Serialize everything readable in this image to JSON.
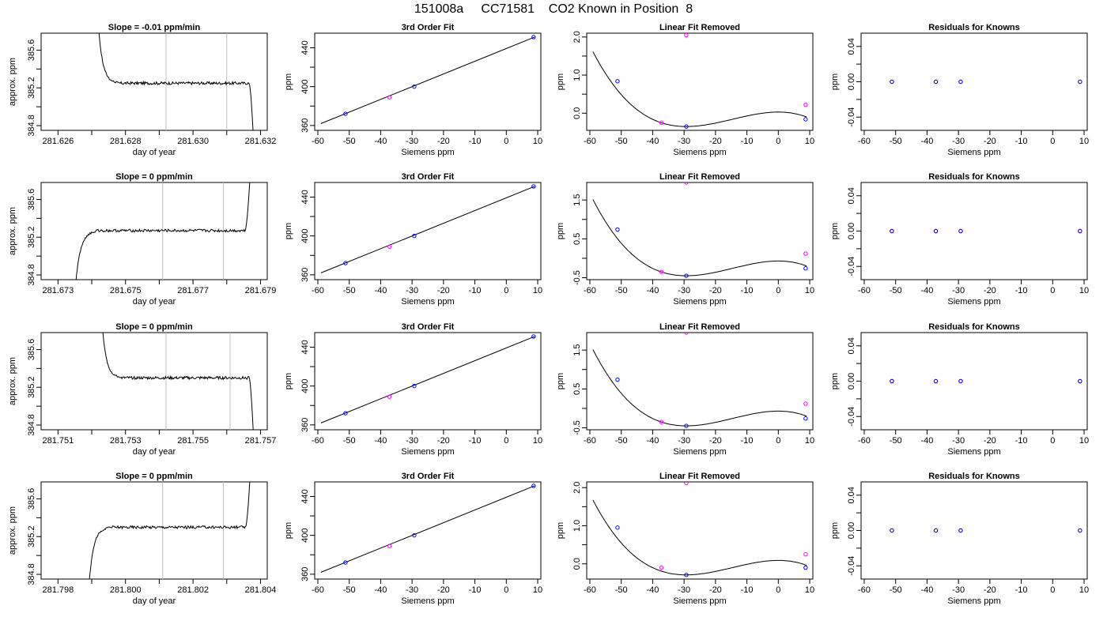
{
  "page_title": "151008a     CC71581    CO2 Known in Position  8",
  "colors": {
    "line": "#000000",
    "point_blue": "#0000ff",
    "point_magenta": "#ff00ff",
    "marker_gray": "#bebebe",
    "axis": "#000000"
  },
  "chart_data": [
    {
      "row": 1,
      "col": 1,
      "type": "line",
      "title": "Slope =  -0.01  ppm/min",
      "xlabel": "day of year",
      "ylabel": "approx. ppm",
      "xlim": [
        281.6255,
        281.6322
      ],
      "ylim": [
        384.75,
        385.78
      ],
      "xticks": [
        281.626,
        281.627,
        281.628,
        281.629,
        281.63,
        281.631,
        281.632
      ],
      "xtick_labels": [
        "281.626",
        "",
        "281.628",
        "",
        "281.630",
        "",
        "281.632"
      ],
      "yticks": [
        384.8,
        385.0,
        385.2,
        385.4,
        385.6
      ],
      "ytick_labels": [
        "384.8",
        "",
        "385.2",
        "",
        "385.6"
      ],
      "vlines": [
        281.6292,
        281.631
      ],
      "series": [
        {
          "shape": "settle_drop",
          "x_start": 281.6272,
          "x_end": 281.6318,
          "plateau": 385.25,
          "start": 385.85,
          "end": 384.6
        }
      ]
    },
    {
      "row": 1,
      "col": 2,
      "type": "scatter",
      "title": "3rd Order Fit",
      "xlabel": "Siemens ppm",
      "ylabel": "ppm",
      "xlim": [
        -61,
        11
      ],
      "ylim": [
        355,
        455
      ],
      "xticks": [
        -60,
        -50,
        -40,
        -30,
        -20,
        -10,
        0,
        10
      ],
      "xtick_labels": [
        "-60",
        "-50",
        "-40",
        "-30",
        "-20",
        "-10",
        "0",
        "10"
      ],
      "yticks": [
        360,
        380,
        400,
        420,
        440
      ],
      "ytick_labels": [
        "360",
        "",
        "400",
        "",
        "440"
      ],
      "fit_line": [
        [
          -59,
          362
        ],
        [
          9,
          451
        ]
      ],
      "points_blue": [
        [
          -51.2,
          372
        ],
        [
          -29.3,
          400
        ],
        [
          8.7,
          451
        ]
      ],
      "points_magenta": [
        [
          -37.2,
          389
        ]
      ]
    },
    {
      "row": 1,
      "col": 3,
      "type": "scatter",
      "title": "Linear Fit Removed",
      "xlabel": "Siemens ppm",
      "ylabel": "ppm",
      "xlim": [
        -61,
        11
      ],
      "ylim": [
        -0.45,
        2.1
      ],
      "xticks": [
        -60,
        -50,
        -40,
        -30,
        -20,
        -10,
        0,
        10
      ],
      "xtick_labels": [
        "-60",
        "-50",
        "-40",
        "-30",
        "-20",
        "-10",
        "0",
        "10"
      ],
      "yticks": [
        0.0,
        0.5,
        1.0,
        1.5,
        2.0
      ],
      "ytick_labels": [
        "0.0",
        "",
        "1.0",
        "",
        "2.0"
      ],
      "curve": {
        "x0": -59,
        "x1": 9,
        "a": 1.54,
        "xmin": -29.3,
        "ymin": -0.35
      },
      "points_blue": [
        [
          -51.2,
          0.84
        ],
        [
          -29.3,
          -0.35
        ],
        [
          8.7,
          -0.16
        ]
      ],
      "points_magenta": [
        [
          -37.2,
          -0.25
        ],
        [
          -29.3,
          2.05
        ],
        [
          8.7,
          0.22
        ]
      ]
    },
    {
      "row": 1,
      "col": 4,
      "type": "scatter",
      "title": "Residuals for Knowns",
      "xlabel": "Siemens ppm",
      "ylabel": "ppm",
      "xlim": [
        -61,
        11
      ],
      "ylim": [
        -0.055,
        0.055
      ],
      "xticks": [
        -60,
        -50,
        -40,
        -30,
        -20,
        -10,
        0,
        10
      ],
      "xtick_labels": [
        "-60",
        "-50",
        "-40",
        "-30",
        "-20",
        "-10",
        "0",
        "10"
      ],
      "yticks": [
        -0.04,
        -0.02,
        0.0,
        0.02,
        0.04
      ],
      "ytick_labels": [
        "-0.04",
        "",
        "0.00",
        "",
        "0.04"
      ],
      "points_blue": [
        [
          -51.2,
          0
        ],
        [
          -37.2,
          0
        ],
        [
          -29.3,
          0
        ],
        [
          8.7,
          0
        ]
      ],
      "points_magenta": [
        [
          -51.2,
          0
        ],
        [
          -37.2,
          0
        ],
        [
          -29.3,
          0
        ],
        [
          8.7,
          0
        ]
      ]
    },
    {
      "row": 2,
      "col": 1,
      "type": "line",
      "title": "Slope =  0  ppm/min",
      "xlabel": "day of year",
      "ylabel": "approx. ppm",
      "xlim": [
        281.6725,
        281.6792
      ],
      "ylim": [
        384.75,
        385.78
      ],
      "xticks": [
        281.673,
        281.674,
        281.675,
        281.676,
        281.677,
        281.678,
        281.679
      ],
      "xtick_labels": [
        "281.673",
        "",
        "281.675",
        "",
        "281.677",
        "",
        "281.679"
      ],
      "yticks": [
        384.8,
        385.0,
        385.2,
        385.4,
        385.6
      ],
      "ytick_labels": [
        "384.8",
        "",
        "385.2",
        "",
        "385.6"
      ],
      "vlines": [
        281.6761,
        281.6779
      ],
      "series": [
        {
          "shape": "rise_rise",
          "x_start": 281.6735,
          "x_end": 281.6787,
          "plateau": 385.27,
          "start": 384.6,
          "end": 385.9
        }
      ]
    },
    {
      "row": 2,
      "col": 2,
      "type": "scatter",
      "title": "3rd Order Fit",
      "xlabel": "Siemens ppm",
      "ylabel": "ppm",
      "xlim": [
        -61,
        11
      ],
      "ylim": [
        355,
        455
      ],
      "xticks": [
        -60,
        -50,
        -40,
        -30,
        -20,
        -10,
        0,
        10
      ],
      "xtick_labels": [
        "-60",
        "-50",
        "-40",
        "-30",
        "-20",
        "-10",
        "0",
        "10"
      ],
      "yticks": [
        360,
        380,
        400,
        420,
        440
      ],
      "ytick_labels": [
        "360",
        "",
        "400",
        "",
        "440"
      ],
      "fit_line": [
        [
          -59,
          362
        ],
        [
          9,
          451
        ]
      ],
      "points_blue": [
        [
          -51.2,
          372
        ],
        [
          -29.3,
          400
        ],
        [
          8.7,
          451
        ]
      ],
      "points_magenta": [
        [
          -37.2,
          389
        ]
      ]
    },
    {
      "row": 2,
      "col": 3,
      "type": "scatter",
      "title": "Linear Fit Removed",
      "xlabel": "Siemens ppm",
      "ylabel": "ppm",
      "xlim": [
        -61,
        11
      ],
      "ylim": [
        -0.55,
        1.95
      ],
      "xticks": [
        -60,
        -50,
        -40,
        -30,
        -20,
        -10,
        0,
        10
      ],
      "xtick_labels": [
        "-60",
        "-50",
        "-40",
        "-30",
        "-20",
        "-10",
        "0",
        "10"
      ],
      "yticks": [
        -0.5,
        0.0,
        0.5,
        1.0,
        1.5
      ],
      "ytick_labels": [
        "-0.5",
        "",
        "0.5",
        "",
        "1.5"
      ],
      "curve": {
        "x0": -59,
        "x1": 9,
        "a": 1.54,
        "xmin": -29.3,
        "ymin": -0.45
      },
      "points_blue": [
        [
          -51.2,
          0.74
        ],
        [
          -29.3,
          -0.45
        ],
        [
          8.7,
          -0.26
        ]
      ],
      "points_magenta": [
        [
          -37.2,
          -0.35
        ],
        [
          -29.3,
          1.95
        ],
        [
          8.7,
          0.12
        ]
      ]
    },
    {
      "row": 2,
      "col": 4,
      "type": "scatter",
      "title": "Residuals for Knowns",
      "xlabel": "Siemens ppm",
      "ylabel": "ppm",
      "xlim": [
        -61,
        11
      ],
      "ylim": [
        -0.055,
        0.055
      ],
      "xticks": [
        -60,
        -50,
        -40,
        -30,
        -20,
        -10,
        0,
        10
      ],
      "xtick_labels": [
        "-60",
        "-50",
        "-40",
        "-30",
        "-20",
        "-10",
        "0",
        "10"
      ],
      "yticks": [
        -0.04,
        -0.02,
        0.0,
        0.02,
        0.04
      ],
      "ytick_labels": [
        "-0.04",
        "",
        "0.00",
        "",
        "0.04"
      ],
      "points_blue": [
        [
          -51.2,
          0
        ],
        [
          -37.2,
          0
        ],
        [
          -29.3,
          0
        ],
        [
          8.7,
          0
        ]
      ],
      "points_magenta": [
        [
          -51.2,
          0
        ],
        [
          -37.2,
          0
        ],
        [
          -29.3,
          0
        ],
        [
          8.7,
          0
        ]
      ]
    },
    {
      "row": 3,
      "col": 1,
      "type": "line",
      "title": "Slope =  0  ppm/min",
      "xlabel": "day of year",
      "ylabel": "approx. ppm",
      "xlim": [
        281.7505,
        281.7572
      ],
      "ylim": [
        384.75,
        385.78
      ],
      "xticks": [
        281.751,
        281.752,
        281.753,
        281.754,
        281.755,
        281.756,
        281.757
      ],
      "xtick_labels": [
        "281.751",
        "",
        "281.753",
        "",
        "281.755",
        "",
        "281.757"
      ],
      "yticks": [
        384.8,
        385.0,
        385.2,
        385.4,
        385.6
      ],
      "ytick_labels": [
        "384.8",
        "",
        "385.2",
        "",
        "385.6"
      ],
      "vlines": [
        281.7542,
        281.7561
      ],
      "series": [
        {
          "shape": "settle_drop",
          "x_start": 281.7523,
          "x_end": 281.7568,
          "plateau": 385.3,
          "start": 385.9,
          "end": 384.6
        }
      ]
    },
    {
      "row": 3,
      "col": 2,
      "type": "scatter",
      "title": "3rd Order Fit",
      "xlabel": "Siemens ppm",
      "ylabel": "ppm",
      "xlim": [
        -61,
        11
      ],
      "ylim": [
        355,
        455
      ],
      "xticks": [
        -60,
        -50,
        -40,
        -30,
        -20,
        -10,
        0,
        10
      ],
      "xtick_labels": [
        "-60",
        "-50",
        "-40",
        "-30",
        "-20",
        "-10",
        "0",
        "10"
      ],
      "yticks": [
        360,
        380,
        400,
        420,
        440
      ],
      "ytick_labels": [
        "360",
        "",
        "400",
        "",
        "440"
      ],
      "fit_line": [
        [
          -59,
          362
        ],
        [
          9,
          451
        ]
      ],
      "points_blue": [
        [
          -51.2,
          372
        ],
        [
          -29.3,
          400
        ],
        [
          8.7,
          451
        ]
      ],
      "points_magenta": [
        [
          -37.2,
          389
        ]
      ]
    },
    {
      "row": 3,
      "col": 3,
      "type": "scatter",
      "title": "Linear Fit Removed",
      "xlabel": "Siemens ppm",
      "ylabel": "ppm",
      "xlim": [
        -61,
        11
      ],
      "ylim": [
        -0.55,
        1.95
      ],
      "xticks": [
        -60,
        -50,
        -40,
        -30,
        -20,
        -10,
        0,
        10
      ],
      "xtick_labels": [
        "-60",
        "-50",
        "-40",
        "-30",
        "-20",
        "-10",
        "0",
        "10"
      ],
      "yticks": [
        -0.5,
        0.0,
        0.5,
        1.0,
        1.5
      ],
      "ytick_labels": [
        "-0.5",
        "",
        "0.5",
        "",
        "1.5"
      ],
      "curve": {
        "x0": -59,
        "x1": 9,
        "a": 1.54,
        "xmin": -29.3,
        "ymin": -0.45
      },
      "points_blue": [
        [
          -51.2,
          0.74
        ],
        [
          -29.3,
          -0.45
        ],
        [
          8.7,
          -0.26
        ]
      ],
      "points_magenta": [
        [
          -37.2,
          -0.35
        ],
        [
          -29.3,
          1.95
        ],
        [
          8.7,
          0.12
        ]
      ]
    },
    {
      "row": 3,
      "col": 4,
      "type": "scatter",
      "title": "Residuals for Knowns",
      "xlabel": "Siemens ppm",
      "ylabel": "ppm",
      "xlim": [
        -61,
        11
      ],
      "ylim": [
        -0.055,
        0.055
      ],
      "xticks": [
        -60,
        -50,
        -40,
        -30,
        -20,
        -10,
        0,
        10
      ],
      "xtick_labels": [
        "-60",
        "-50",
        "-40",
        "-30",
        "-20",
        "-10",
        "0",
        "10"
      ],
      "yticks": [
        -0.04,
        -0.02,
        0.0,
        0.02,
        0.04
      ],
      "ytick_labels": [
        "-0.04",
        "",
        "0.00",
        "",
        "0.04"
      ],
      "points_blue": [
        [
          -51.2,
          0
        ],
        [
          -37.2,
          0
        ],
        [
          -29.3,
          0
        ],
        [
          8.7,
          0
        ]
      ],
      "points_magenta": [
        [
          -51.2,
          0
        ],
        [
          -37.2,
          0
        ],
        [
          -29.3,
          0
        ],
        [
          8.7,
          0
        ]
      ]
    },
    {
      "row": 4,
      "col": 1,
      "type": "line",
      "title": "Slope =  0  ppm/min",
      "xlabel": "day of year",
      "ylabel": "approx. ppm",
      "xlim": [
        281.7975,
        281.8042
      ],
      "ylim": [
        384.75,
        385.78
      ],
      "xticks": [
        281.798,
        281.799,
        281.8,
        281.801,
        281.802,
        281.803,
        281.804
      ],
      "xtick_labels": [
        "281.798",
        "",
        "281.800",
        "",
        "281.802",
        "",
        "281.804"
      ],
      "yticks": [
        384.8,
        385.0,
        385.2,
        385.4,
        385.6
      ],
      "ytick_labels": [
        "384.8",
        "",
        "385.2",
        "",
        "385.6"
      ],
      "vlines": [
        281.8011,
        281.8029
      ],
      "series": [
        {
          "shape": "rise_rise",
          "x_start": 281.7989,
          "x_end": 281.8037,
          "plateau": 385.3,
          "start": 384.6,
          "end": 385.9
        }
      ]
    },
    {
      "row": 4,
      "col": 2,
      "type": "scatter",
      "title": "3rd Order Fit",
      "xlabel": "Siemens ppm",
      "ylabel": "ppm",
      "xlim": [
        -61,
        11
      ],
      "ylim": [
        355,
        455
      ],
      "xticks": [
        -60,
        -50,
        -40,
        -30,
        -20,
        -10,
        0,
        10
      ],
      "xtick_labels": [
        "-60",
        "-50",
        "-40",
        "-30",
        "-20",
        "-10",
        "0",
        "10"
      ],
      "yticks": [
        360,
        380,
        400,
        420,
        440
      ],
      "ytick_labels": [
        "360",
        "",
        "400",
        "",
        "440"
      ],
      "fit_line": [
        [
          -59,
          362
        ],
        [
          9,
          451
        ]
      ],
      "points_blue": [
        [
          -51.2,
          372
        ],
        [
          -29.3,
          400
        ],
        [
          8.7,
          451
        ]
      ],
      "points_magenta": [
        [
          -37.2,
          389
        ]
      ]
    },
    {
      "row": 4,
      "col": 3,
      "type": "scatter",
      "title": "Linear Fit Removed",
      "xlabel": "Siemens ppm",
      "ylabel": "ppm",
      "xlim": [
        -61,
        11
      ],
      "ylim": [
        -0.4,
        2.15
      ],
      "xticks": [
        -60,
        -50,
        -40,
        -30,
        -20,
        -10,
        0,
        10
      ],
      "xtick_labels": [
        "-60",
        "-50",
        "-40",
        "-30",
        "-20",
        "-10",
        "0",
        "10"
      ],
      "yticks": [
        0.0,
        0.5,
        1.0,
        1.5,
        2.0
      ],
      "ytick_labels": [
        "0.0",
        "",
        "1.0",
        "",
        "2.0"
      ],
      "curve": {
        "x0": -59,
        "x1": 9,
        "a": 1.54,
        "xmin": -29.3,
        "ymin": -0.29
      },
      "points_blue": [
        [
          -51.2,
          0.95
        ],
        [
          -29.3,
          -0.29
        ],
        [
          8.7,
          -0.1
        ]
      ],
      "points_magenta": [
        [
          -37.2,
          -0.1
        ],
        [
          -29.3,
          2.12
        ],
        [
          8.7,
          0.25
        ]
      ]
    },
    {
      "row": 4,
      "col": 4,
      "type": "scatter",
      "title": "Residuals for Knowns",
      "xlabel": "Siemens ppm",
      "ylabel": "ppm",
      "xlim": [
        -61,
        11
      ],
      "ylim": [
        -0.055,
        0.055
      ],
      "xticks": [
        -60,
        -50,
        -40,
        -30,
        -20,
        -10,
        0,
        10
      ],
      "xtick_labels": [
        "-60",
        "-50",
        "-40",
        "-30",
        "-20",
        "-10",
        "0",
        "10"
      ],
      "yticks": [
        -0.04,
        -0.02,
        0.0,
        0.02,
        0.04
      ],
      "ytick_labels": [
        "-0.04",
        "",
        "0.00",
        "",
        "0.04"
      ],
      "points_blue": [
        [
          -51.2,
          0
        ],
        [
          -37.2,
          0
        ],
        [
          -29.3,
          0
        ],
        [
          8.7,
          0
        ]
      ],
      "points_magenta": [
        [
          -51.2,
          0
        ],
        [
          -37.2,
          0
        ],
        [
          -29.3,
          0
        ],
        [
          8.7,
          0
        ]
      ]
    }
  ]
}
